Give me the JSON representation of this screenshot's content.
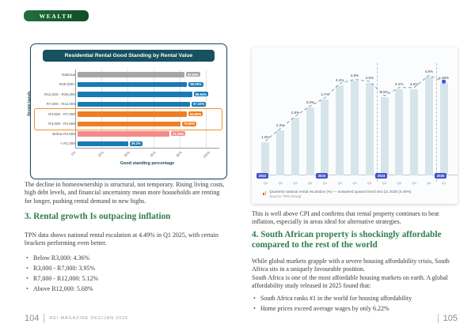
{
  "badge": {
    "label": "WEALTH"
  },
  "left_page": {
    "para1": "The decline in homeownership is structural, not temporary. Rising living costs, high debt levels, and financial uncertainty mean more households are renting for longer, pushing rental demand to new highs.",
    "heading": "3. Rental growth Is outpacing inflation",
    "para2": "TPN data shows national rental escalation at 4.49% in Q1 2025, with certain brackets performing even better.",
    "bullets": [
      "Below R3,000: 4.36%",
      "R3,000 - R7,000: 3.95%",
      "R7,000 - R12,000: 5.12%",
      "Above R12,000: 5.68%"
    ]
  },
  "right_page": {
    "para1": "This is well above CPI and confirms that rental property continues to beat inflation, especially in areas ideal for alternative strategies.",
    "heading": "4. South African property is shockingly affordable compared to the rest of the world",
    "para2": "While global markets grapple with a severe housing affordability crisis, South Africa sits in a uniquely favourable position.",
    "para3": "South Africa is one of the most affordable housing markets on earth. A global affordability study released in 2025 found that:",
    "bullets": [
      "South Africa ranks #1 in the world for housing affordability",
      "Home prices exceed average wages by only 6.22%"
    ]
  },
  "footer": {
    "left_page_number": "104",
    "magazine": "REI MAGAZINE DEC/JAN 2026",
    "right_page_number": "105"
  },
  "colors": {
    "heading_green": "#2e7d4f",
    "badge_green": "#0f4c28",
    "card_border_navy": "#1d4a5e",
    "chart1_header": "#17505f",
    "bar_gray": "#a6a6a6",
    "bar_blue": "#1a7ab5",
    "bar_orange": "#ee7d23",
    "bar_pink": "#f48a8a",
    "highlight_orange": "#f0922b",
    "chart2_bar": "#d6e5e9",
    "chart2_line": "#86a4c6",
    "chart2_dot": "#3a57e8",
    "year_badge_blue": "#4252c9"
  },
  "chart_data": [
    {
      "type": "bar",
      "orientation": "horizontal",
      "title": "Residential Rental Good Standing by Rental Value",
      "categories": [
        "National",
        "R25,000+",
        "R12,000 - R25,000",
        "R7,000 - R12,000",
        "R4,500 - R7,000",
        "R3,000 - R4,500",
        "Below R3,000",
        "< R1,000"
      ],
      "values": [
        82.93,
        85.06,
        88.94,
        87.33,
        84.85,
        79.9,
        71.19,
        39.2
      ],
      "value_labels": [
        "82.93%",
        "85.06%",
        "88.94%",
        "87.33%",
        "84.85%",
        "79.90%",
        "71.19%",
        "39.2%"
      ],
      "bar_colors": [
        "#a6a6a6",
        "#1a7ab5",
        "#1a7ab5",
        "#1a7ab5",
        "#ee7d23",
        "#ee7d23",
        "#f48a8a",
        "#1a7ab5"
      ],
      "highlighted_rows": [
        4,
        5
      ],
      "xlabel": "Good standing percentage",
      "ylabel": "Rental bands",
      "xlim": [
        0,
        110
      ],
      "ticks": [
        0,
        20,
        40,
        60,
        80,
        100
      ],
      "tick_labels": [
        "0%",
        "20%",
        "40%",
        "60%",
        "80%",
        "100%"
      ],
      "grid": true,
      "legend": "none"
    },
    {
      "type": "bar+line",
      "title": "",
      "x": [
        "Q1",
        "Q2",
        "Q3",
        "Q4",
        "Q1",
        "Q2",
        "Q3",
        "Q4",
        "Q1",
        "Q2",
        "Q3",
        "Q4",
        "Q1"
      ],
      "years": [
        {
          "label": "2022",
          "index": 0
        },
        {
          "label": "2023",
          "index": 4
        },
        {
          "label": "2024",
          "index": 8
        },
        {
          "label": "2025",
          "index": 12
        }
      ],
      "values": [
        1.6,
        2.2,
        2.8,
        3.3,
        3.7,
        4.4,
        4.6,
        4.5,
        3.8,
        4.2,
        4.2,
        4.8,
        4.49
      ],
      "value_labels": [
        "1.6%",
        "2.2%",
        "2.8%",
        "3.3%",
        "3.7%",
        "4.4%",
        "4.6%",
        "4.5%",
        "3.8%",
        "4.2%",
        "4.2%",
        "4.8%",
        "4.49%"
      ],
      "separator_indices": [
        8,
        12
      ],
      "last_point_marker": "blue-dot",
      "ylim": [
        0,
        5
      ],
      "grid": false,
      "legend": "none",
      "caption_line1": "Quarterly national rental escalation (%) — sustained upward trend into Q1 2025 (4.49%)",
      "caption_line2": "Source: TPN Group"
    }
  ]
}
